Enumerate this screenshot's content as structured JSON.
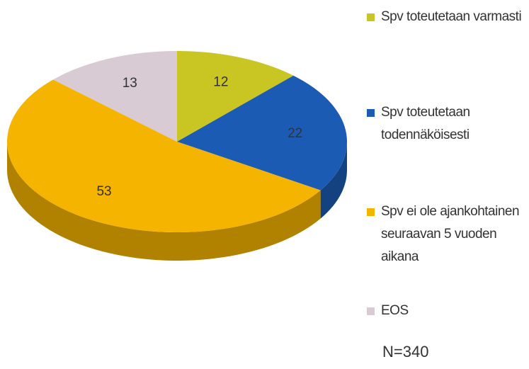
{
  "chart_data": {
    "type": "pie3d",
    "categories": [
      "Spv toteutetaan varmasti",
      "Spv toteutetaan todennäköisesti",
      "Spv ei ole ajankohtainen seuraavan 5 vuoden aikana",
      "EOS"
    ],
    "values": [
      12,
      22,
      53,
      13
    ],
    "colors": [
      "#c9c624",
      "#1c5bb3",
      "#f4b400",
      "#d9cbd3"
    ],
    "annotation": "N=340"
  }
}
